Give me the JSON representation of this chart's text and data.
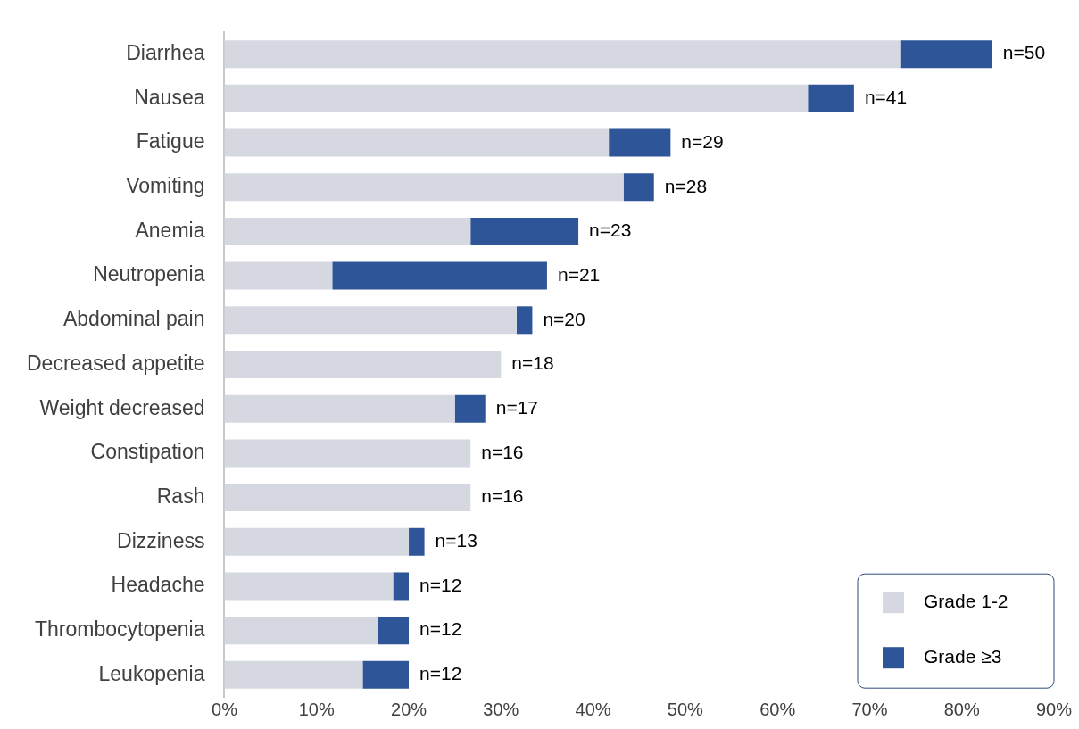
{
  "chart_data": {
    "type": "bar",
    "orientation": "horizontal",
    "stacked": true,
    "categories": [
      "Diarrhea",
      "Nausea",
      "Fatigue",
      "Vomiting",
      "Anemia",
      "Neutropenia",
      "Abdominal pain",
      "Decreased appetite",
      "Weight decreased",
      "Constipation",
      "Rash",
      "Dizziness",
      "Headache",
      "Thrombocytopenia",
      "Leukopenia"
    ],
    "series": [
      {
        "name": "Grade 1-2",
        "color": "#d5d8e1",
        "values": [
          73.3,
          63.3,
          41.7,
          43.3,
          26.7,
          11.7,
          31.7,
          30.0,
          25.0,
          26.7,
          26.7,
          20.0,
          18.3,
          16.7,
          15.0
        ]
      },
      {
        "name": "Grade ≥3",
        "color": "#2e5597",
        "values": [
          10.0,
          5.0,
          6.7,
          3.3,
          11.7,
          23.3,
          1.7,
          0,
          3.3,
          0,
          0,
          1.7,
          1.7,
          3.3,
          5.0
        ]
      }
    ],
    "annotations": [
      {
        "text": "n=50",
        "x": 83.3,
        "y": "Diarrhea"
      },
      {
        "text": "n=41",
        "x": 68.3,
        "y": "Nausea"
      },
      {
        "text": "n=29",
        "x": 48.4,
        "y": "Fatigue"
      },
      {
        "text": "n=28",
        "x": 46.6,
        "y": "Vomiting"
      },
      {
        "text": "n=23",
        "x": 38.4,
        "y": "Anemia"
      },
      {
        "text": "n=21",
        "x": 35.0,
        "y": "Neutropenia"
      },
      {
        "text": "n=20",
        "x": 33.4,
        "y": "Abdominal pain"
      },
      {
        "text": "n=18",
        "x": 30.0,
        "y": "Decreased appetite"
      },
      {
        "text": "n=17",
        "x": 28.3,
        "y": "Weight decreased"
      },
      {
        "text": "n=16",
        "x": 26.7,
        "y": "Constipation"
      },
      {
        "text": "n=16",
        "x": 26.7,
        "y": "Rash"
      },
      {
        "text": "n=13",
        "x": 21.7,
        "y": "Dizziness"
      },
      {
        "text": "n=12",
        "x": 20.0,
        "y": "Headache"
      },
      {
        "text": "n=12",
        "x": 20.0,
        "y": "Thrombocytopenia"
      },
      {
        "text": "n=12",
        "x": 20.0,
        "y": "Leukopenia"
      }
    ],
    "xlim": [
      0,
      90
    ],
    "xticks": [
      {
        "value": 0,
        "label": "0%"
      },
      {
        "value": 10,
        "label": "10%"
      },
      {
        "value": 20,
        "label": "20%"
      },
      {
        "value": 30,
        "label": "30%"
      },
      {
        "value": 40,
        "label": "40%"
      },
      {
        "value": 50,
        "label": "50%"
      },
      {
        "value": 60,
        "label": "60%"
      },
      {
        "value": 70,
        "label": "70%"
      },
      {
        "value": 80,
        "label": "80%"
      },
      {
        "value": 90,
        "label": "90%"
      }
    ],
    "grid": false,
    "legend": "bottom right"
  }
}
